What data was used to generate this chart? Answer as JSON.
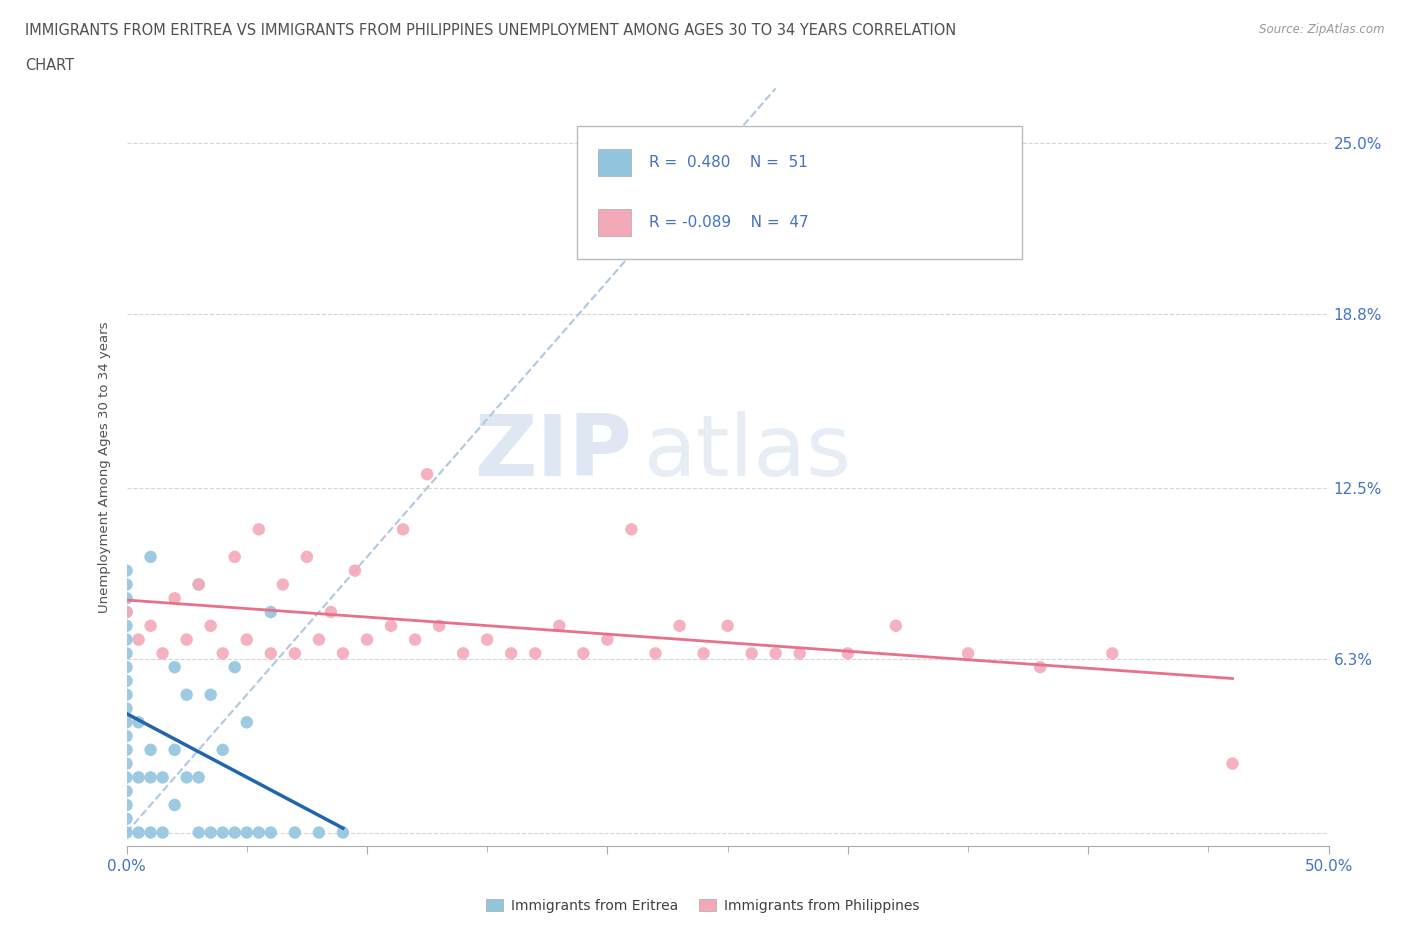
{
  "title_line1": "IMMIGRANTS FROM ERITREA VS IMMIGRANTS FROM PHILIPPINES UNEMPLOYMENT AMONG AGES 30 TO 34 YEARS CORRELATION",
  "title_line2": "CHART",
  "source_text": "Source: ZipAtlas.com",
  "ylabel": "Unemployment Among Ages 30 to 34 years",
  "xlim": [
    0.0,
    0.5
  ],
  "ylim": [
    -0.005,
    0.27
  ],
  "ytick_vals": [
    0.0,
    0.063,
    0.125,
    0.188,
    0.25
  ],
  "ytick_labels": [
    "",
    "6.3%",
    "12.5%",
    "18.8%",
    "25.0%"
  ],
  "xtick_vals": [
    0.0,
    0.1,
    0.2,
    0.3,
    0.4,
    0.5
  ],
  "xtick_labels": [
    "0.0%",
    "",
    "",
    "",
    "",
    "50.0%"
  ],
  "eritrea_color": "#92c5de",
  "philippines_color": "#f4a9b8",
  "trend_eritrea_color": "#2166ac",
  "trend_philippines_color": "#e8708a",
  "r_eritrea": 0.48,
  "n_eritrea": 51,
  "r_philippines": -0.089,
  "n_philippines": 47,
  "watermark_zip": "ZIP",
  "watermark_atlas": "atlas",
  "legend_label_eritrea": "Immigrants from Eritrea",
  "legend_label_philippines": "Immigrants from Philippines",
  "eritrea_x": [
    0.0,
    0.0,
    0.0,
    0.0,
    0.0,
    0.0,
    0.0,
    0.0,
    0.0,
    0.0,
    0.0,
    0.0,
    0.0,
    0.0,
    0.0,
    0.0,
    0.0,
    0.0,
    0.0,
    0.0,
    0.005,
    0.005,
    0.005,
    0.01,
    0.01,
    0.01,
    0.01,
    0.015,
    0.015,
    0.02,
    0.02,
    0.02,
    0.025,
    0.025,
    0.03,
    0.03,
    0.03,
    0.035,
    0.035,
    0.04,
    0.04,
    0.045,
    0.045,
    0.05,
    0.05,
    0.055,
    0.06,
    0.06,
    0.07,
    0.08,
    0.09
  ],
  "eritrea_y": [
    0.0,
    0.005,
    0.01,
    0.015,
    0.02,
    0.025,
    0.03,
    0.035,
    0.04,
    0.045,
    0.05,
    0.055,
    0.06,
    0.065,
    0.07,
    0.075,
    0.08,
    0.085,
    0.09,
    0.095,
    0.0,
    0.02,
    0.04,
    0.0,
    0.02,
    0.03,
    0.1,
    0.0,
    0.02,
    0.01,
    0.03,
    0.06,
    0.02,
    0.05,
    0.0,
    0.02,
    0.09,
    0.0,
    0.05,
    0.0,
    0.03,
    0.0,
    0.06,
    0.0,
    0.04,
    0.0,
    0.0,
    0.08,
    0.0,
    0.0,
    0.0
  ],
  "philippines_x": [
    0.0,
    0.005,
    0.01,
    0.015,
    0.02,
    0.025,
    0.03,
    0.035,
    0.04,
    0.045,
    0.05,
    0.055,
    0.06,
    0.065,
    0.07,
    0.075,
    0.08,
    0.085,
    0.09,
    0.095,
    0.1,
    0.11,
    0.115,
    0.12,
    0.125,
    0.13,
    0.14,
    0.15,
    0.16,
    0.17,
    0.18,
    0.19,
    0.2,
    0.21,
    0.22,
    0.23,
    0.24,
    0.25,
    0.26,
    0.27,
    0.28,
    0.3,
    0.32,
    0.35,
    0.38,
    0.41,
    0.46
  ],
  "philippines_y": [
    0.08,
    0.07,
    0.075,
    0.065,
    0.085,
    0.07,
    0.09,
    0.075,
    0.065,
    0.1,
    0.07,
    0.11,
    0.065,
    0.09,
    0.065,
    0.1,
    0.07,
    0.08,
    0.065,
    0.095,
    0.07,
    0.075,
    0.11,
    0.07,
    0.13,
    0.075,
    0.065,
    0.07,
    0.065,
    0.065,
    0.075,
    0.065,
    0.07,
    0.11,
    0.065,
    0.075,
    0.065,
    0.075,
    0.065,
    0.065,
    0.065,
    0.065,
    0.075,
    0.065,
    0.06,
    0.065,
    0.025
  ],
  "background_color": "#ffffff",
  "grid_color": "#cccccc",
  "title_color": "#505050",
  "tick_color": "#4472c4"
}
